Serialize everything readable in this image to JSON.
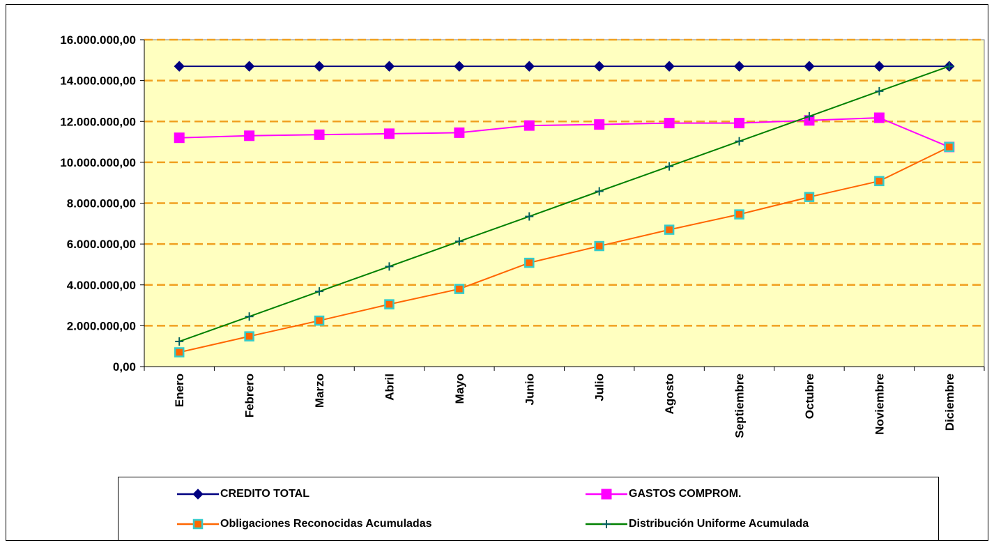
{
  "chart_data": {
    "type": "line",
    "categories": [
      "Enero",
      "Febrero",
      "Marzo",
      "Abril",
      "Mayo",
      "Junio",
      "Julio",
      "Agosto",
      "Septiembre",
      "Octubre",
      "Noviembre",
      "Diciembre"
    ],
    "ylim": [
      0,
      16000000
    ],
    "yticks": [
      {
        "value": 0,
        "label": "0,00"
      },
      {
        "value": 2000000,
        "label": "2.000.000,00"
      },
      {
        "value": 4000000,
        "label": "4.000.000,00"
      },
      {
        "value": 6000000,
        "label": "6.000.000,00"
      },
      {
        "value": 8000000,
        "label": "8.000.000,00"
      },
      {
        "value": 10000000,
        "label": "10.000.000,00"
      },
      {
        "value": 12000000,
        "label": "12.000.000,00"
      },
      {
        "value": 14000000,
        "label": "14.000.000,00"
      },
      {
        "value": 16000000,
        "label": "16.000.000,00"
      }
    ],
    "grid": true,
    "legend_position": "bottom",
    "series": [
      {
        "name": "CREDITO TOTAL",
        "color": "#000080",
        "marker": "diamond",
        "values": [
          14700000,
          14700000,
          14700000,
          14700000,
          14700000,
          14700000,
          14700000,
          14700000,
          14700000,
          14700000,
          14700000,
          14700000
        ]
      },
      {
        "name": "GASTOS COMPROM.",
        "color": "#ff00ff",
        "marker": "square",
        "values": [
          11200000,
          11300000,
          11350000,
          11400000,
          11450000,
          11800000,
          11850000,
          11920000,
          11920000,
          12050000,
          12180000,
          10750000
        ]
      },
      {
        "name": "Obligaciones Reconocidas Acumuladas",
        "color": "#ff6600",
        "marker": "square-outlined",
        "values": [
          700000,
          1480000,
          2250000,
          3050000,
          3800000,
          5080000,
          5900000,
          6700000,
          7450000,
          8300000,
          9080000,
          10750000
        ]
      },
      {
        "name": "Distribución Uniforme Acumulada",
        "color": "#008000",
        "marker": "plus",
        "values": [
          1230000,
          2450000,
          3680000,
          4900000,
          6130000,
          7350000,
          8580000,
          9800000,
          11030000,
          12250000,
          13480000,
          14700000
        ]
      }
    ]
  },
  "style": {
    "plot_background": "#ffffc0",
    "grid_color": "#f0a020",
    "marker_fill_orange": "#ff6600",
    "marker_outline_cyan": "#33cccc"
  }
}
